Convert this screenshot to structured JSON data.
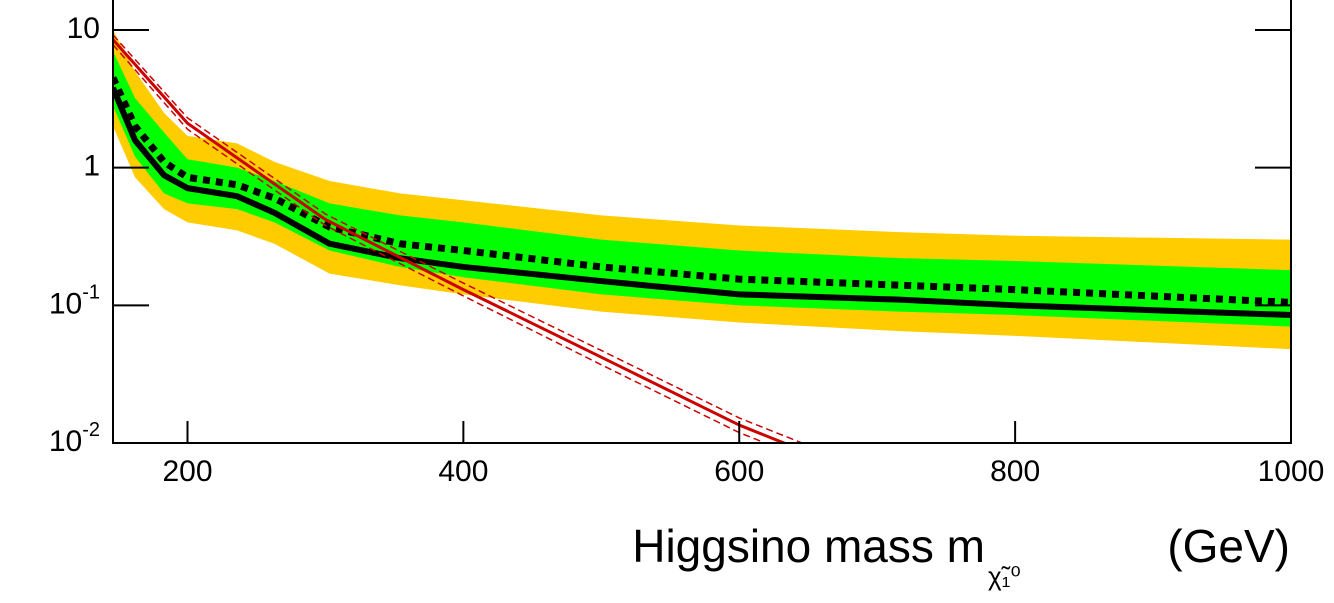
{
  "chart_data": {
    "type": "line",
    "log_y": true,
    "xlim": [
      146,
      1000
    ],
    "ylim": [
      0.01,
      16.5
    ],
    "xticks": [
      200,
      400,
      600,
      800,
      1000
    ],
    "yticks": [
      {
        "value": 0.01,
        "label": "10",
        "exponent": "-2"
      },
      {
        "value": 0.1,
        "label": "10",
        "exponent": "-1"
      },
      1,
      10
    ],
    "x_label": {
      "text": "Higgsino mass m",
      "subscript": "χ̃₁⁰",
      "unit": "(GeV)"
    },
    "x": [
      146,
      162,
      183,
      200,
      236,
      263,
      303,
      354,
      400,
      500,
      600,
      716,
      800,
      1000
    ],
    "bands": [
      {
        "color": "#ffcc00",
        "upper": [
          10,
          5,
          2.5,
          1.7,
          1.5,
          1.1,
          0.8,
          0.65,
          0.58,
          0.45,
          0.38,
          0.34,
          0.32,
          0.3
        ],
        "lower": [
          2,
          0.85,
          0.5,
          0.4,
          0.35,
          0.28,
          0.17,
          0.14,
          0.12,
          0.09,
          0.075,
          0.065,
          0.06,
          0.048
        ]
      },
      {
        "color": "#00ff00",
        "upper": [
          7,
          3.2,
          1.8,
          1.15,
          1.0,
          0.8,
          0.55,
          0.45,
          0.4,
          0.3,
          0.25,
          0.22,
          0.21,
          0.18
        ],
        "lower": [
          2.8,
          1.2,
          0.65,
          0.55,
          0.5,
          0.4,
          0.25,
          0.19,
          0.16,
          0.12,
          0.1,
          0.09,
          0.085,
          0.07
        ]
      }
    ],
    "series": [
      {
        "color": "#000000",
        "style": "dotted",
        "values": [
          4.5,
          2.0,
          1.1,
          0.85,
          0.75,
          0.6,
          0.37,
          0.28,
          0.25,
          0.19,
          0.155,
          0.14,
          0.13,
          0.105
        ]
      },
      {
        "color": "#000000",
        "style": "solid",
        "values": [
          3.8,
          1.58,
          0.88,
          0.71,
          0.62,
          0.47,
          0.28,
          0.22,
          0.19,
          0.15,
          0.12,
          0.11,
          0.1,
          0.085
        ]
      },
      {
        "color": "#cc0000",
        "style": "solid",
        "x": [
          146,
          200,
          300,
          400,
          500,
          600,
          650
        ],
        "values": [
          8.5,
          2.1,
          0.42,
          0.13,
          0.042,
          0.0135,
          0.0085
        ]
      },
      {
        "color": "#cc0000",
        "style": "dashed",
        "x": [
          146,
          200,
          300,
          400,
          500,
          600,
          650
        ],
        "values": [
          9.2,
          2.3,
          0.46,
          0.145,
          0.047,
          0.0152,
          0.0096
        ]
      },
      {
        "color": "#cc0000",
        "style": "dashed",
        "x": [
          146,
          200,
          300,
          400,
          500,
          600,
          650
        ],
        "values": [
          7.8,
          1.9,
          0.38,
          0.117,
          0.037,
          0.0119,
          0.0075
        ]
      }
    ]
  }
}
